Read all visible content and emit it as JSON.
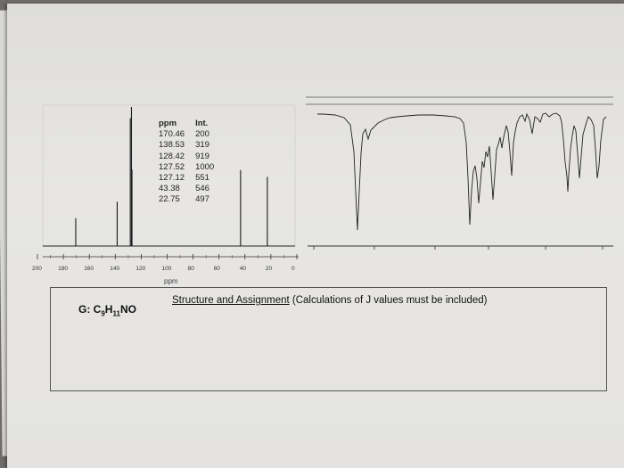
{
  "nmr_peaks": {
    "headers": [
      "ppm",
      "Int."
    ],
    "rows": [
      {
        "ppm": "170.46",
        "int": "200"
      },
      {
        "ppm": "138.53",
        "int": "319"
      },
      {
        "ppm": "128.42",
        "int": "919"
      },
      {
        "ppm": "127.52",
        "int": "1000"
      },
      {
        "ppm": "127.12",
        "int": "551"
      },
      {
        "ppm": "43.38",
        "int": "546"
      },
      {
        "ppm": "22.75",
        "int": "497"
      }
    ]
  },
  "nmr_axis": {
    "ticks": [
      "200",
      "180",
      "160",
      "140",
      "120",
      "100",
      "80",
      "60",
      "40",
      "20",
      "0"
    ],
    "unit": "ppm"
  },
  "compound": {
    "prefix": "G: C",
    "c_sub": "9",
    "h": "H",
    "h_sub": "11",
    "suffix": "NO"
  },
  "instruction": {
    "underlined": "Structure and Assignment",
    "rest": " (Calculations of J values must be included)"
  }
}
